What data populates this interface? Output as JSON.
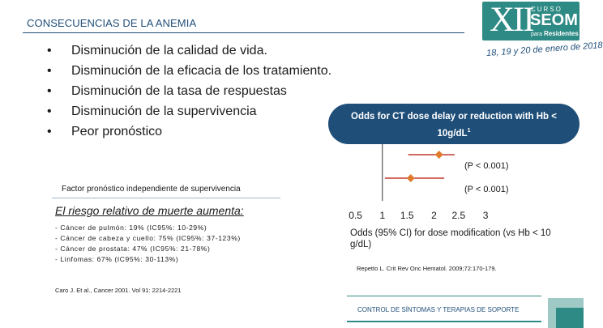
{
  "header": {
    "title": "CONSECUENCIAS DE LA ANEMIA"
  },
  "logo": {
    "numeral": "XII",
    "curso": "CURSO",
    "seom": "SEOM",
    "para": "para",
    "residentes": "Residentes",
    "dates": "18, 19 y 20 de enero de 2018",
    "color_primary": "#2e8a84",
    "color_secondary": "#1f4e79"
  },
  "bullets": {
    "marker": "•",
    "items": [
      "Disminución de la calidad de vida.",
      "Disminución de la eficacia de los tratamiento.",
      "Disminución de la tasa de respuestas",
      "Disminución de la supervivencia",
      "Peor pronóstico"
    ]
  },
  "left_panel": {
    "factor_heading": "Factor pronóstico independiente de supervivencia",
    "risk_title": "El riesgo relativo de muerte aumenta:",
    "risks": [
      "- Cáncer de pulmón: 19% (IC95%: 10-29%)",
      "- Cáncer de cabeza y cuello: 75% (IC95%: 37-123%)",
      "- Cáncer de prostata: 47% (IC95%: 21-78%)",
      "- Linfomas: 67% (IC95%: 30-113%)"
    ],
    "citation": "Caro J. Et al., Cancer 2001. Vol 91: 2214-2221"
  },
  "right_panel": {
    "pill_line1": "Odds for CT dose delay or reduction with Hb <",
    "pill_line2": "10g/dL",
    "pill_sup": "1",
    "caption": "Odds (95% CI) for dose modification (vs Hb < 10 g/dL)",
    "citation": "Repetto L. Crit Rev Onc Hematol. 2009;72:170-179."
  },
  "chart_data": {
    "type": "scatter",
    "subtype": "forest-plot",
    "title": "Odds for CT dose delay or reduction with Hb < 10g/dL",
    "xlabel": "Odds (95% CI) for dose modification (vs Hb < 10 g/dL)",
    "ylabel": "",
    "xlim": [
      0.5,
      3
    ],
    "x_ticks": [
      "0.5",
      "1",
      "1.5",
      "2",
      "2.5",
      "3"
    ],
    "reference_line": 1,
    "series": [
      {
        "estimate": 2.1,
        "ci_low": 1.5,
        "ci_high": 2.4,
        "p_label": "(P < 0.001)"
      },
      {
        "estimate": 1.55,
        "ci_low": 1.05,
        "ci_high": 2.2,
        "p_label": "(P < 0.001)"
      }
    ],
    "marker_color": "#e07b2c",
    "line_color": "#c0392b",
    "grid": false
  },
  "footer": {
    "text": "CONTROL DE SÍNTOMAS Y TERAPIAS DE SOPORTE",
    "accent_light": "#9ec9c5",
    "accent_dark": "#2e8a84"
  }
}
